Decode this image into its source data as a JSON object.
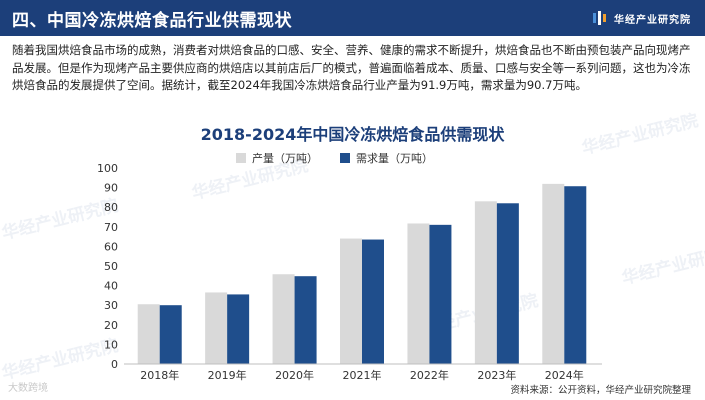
{
  "header": {
    "title": "四、中国冷冻烘焙食品行业供需现状",
    "brand": "华经产业研究院"
  },
  "intro": "随着我国烘焙食品市场的成熟，消费者对烘焙食品的口感、安全、营养、健康的需求不断提升，烘焙食品也不断由预包装产品向现烤产品发展。但是作为现烤产品主要供应商的烘焙店以其前店后厂的模式，普遍面临着成本、质量、口感与安全等一系列问题，这也为冷冻烘焙食品的发展提供了空间。据统计，截至2024年我国冷冻烘焙食品行业产量为91.9万吨，需求量为90.7万吨。",
  "watermark": "华经产业研究院",
  "bottom_mark": "大数跨境",
  "source": "资料来源：公开资料，华经产业研究院整理",
  "colors": {
    "header": "#1c3f7a",
    "production": "#d9d9d9",
    "demand": "#1f4e8c"
  },
  "chart_data": {
    "type": "bar",
    "title": "2018-2024年中国冷冻烘焙食品供需现状",
    "categories": [
      "2018年",
      "2019年",
      "2020年",
      "2021年",
      "2022年",
      "2023年",
      "2024年"
    ],
    "series": [
      {
        "name": "产量（万吨）",
        "values": [
          30.5,
          36.5,
          45.8,
          64.0,
          71.7,
          83.0,
          91.9
        ],
        "color": "#d9d9d9"
      },
      {
        "name": "需求量（万吨）",
        "values": [
          30.0,
          35.5,
          44.8,
          63.5,
          71.0,
          82.0,
          90.7
        ],
        "color": "#1f4e8c"
      }
    ],
    "yticks": [
      0,
      10,
      20,
      30,
      40,
      50,
      60,
      70,
      80,
      90,
      100
    ],
    "ylim": [
      0,
      100
    ],
    "grid": false,
    "legend": "top"
  }
}
